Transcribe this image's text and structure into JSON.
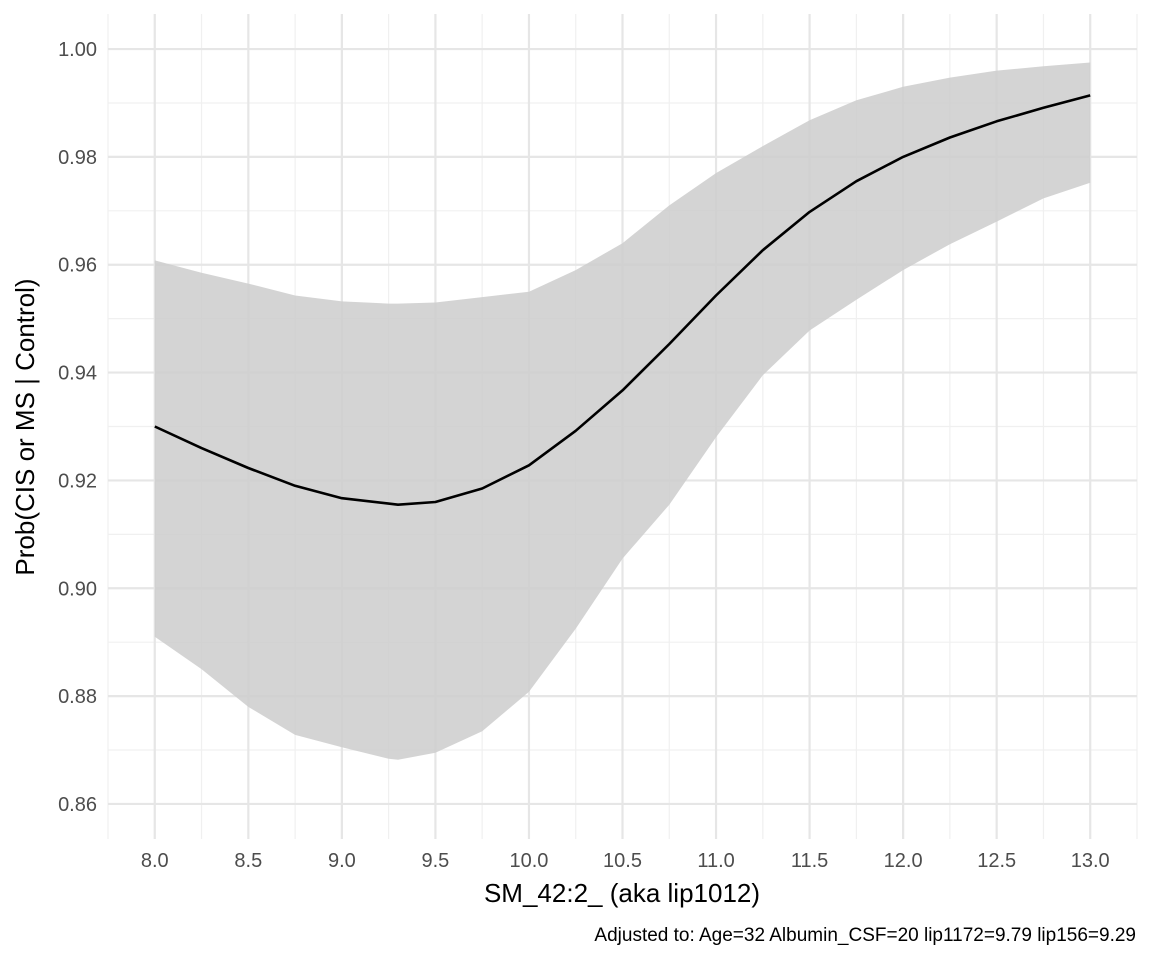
{
  "chart_data": {
    "type": "line",
    "xlabel": "SM_42:2_ (aka lip1012)",
    "ylabel": "Prob(CIS or MS | Control)",
    "caption": "Adjusted to: Age=32 Albumin_CSF=20 lip1172=9.79 lip156=9.29",
    "xlim": [
      7.75,
      13.25
    ],
    "ylim": [
      0.8535,
      1.0065
    ],
    "x_ticks": [
      "8.0",
      "8.5",
      "9.0",
      "9.5",
      "10.0",
      "10.5",
      "11.0",
      "11.5",
      "12.0",
      "12.5",
      "13.0"
    ],
    "y_ticks": [
      "0.86",
      "0.88",
      "0.90",
      "0.92",
      "0.94",
      "0.96",
      "0.98",
      "1.00"
    ],
    "grid": true,
    "legend": "none",
    "colors": {
      "line": "#000000",
      "band": "#cccccc",
      "grid_major": "#e6e6e6",
      "grid_minor": "#f0f0f0"
    },
    "series": [
      {
        "x": [
          8.0,
          8.25,
          8.5,
          8.75,
          9.0,
          9.25,
          9.3,
          9.5,
          9.75,
          10.0,
          10.25,
          10.5,
          10.75,
          11.0,
          11.25,
          11.5,
          11.75,
          12.0,
          12.25,
          12.5,
          12.75,
          13.0
        ],
        "y": [
          0.93,
          0.926,
          0.9223,
          0.919,
          0.9167,
          0.9157,
          0.9155,
          0.916,
          0.9185,
          0.9228,
          0.9292,
          0.9367,
          0.9453,
          0.9543,
          0.9627,
          0.9698,
          0.9755,
          0.98,
          0.9836,
          0.9866,
          0.9891,
          0.9914
        ],
        "lower": [
          0.891,
          0.885,
          0.878,
          0.8728,
          0.8705,
          0.8684,
          0.8682,
          0.8695,
          0.8735,
          0.8808,
          0.8925,
          0.9055,
          0.9155,
          0.928,
          0.9395,
          0.9478,
          0.9535,
          0.959,
          0.9638,
          0.968,
          0.9723,
          0.9752
        ],
        "upper": [
          0.9608,
          0.9585,
          0.9565,
          0.9543,
          0.9532,
          0.9528,
          0.9528,
          0.953,
          0.954,
          0.955,
          0.959,
          0.964,
          0.971,
          0.977,
          0.982,
          0.9868,
          0.9905,
          0.993,
          0.9947,
          0.996,
          0.9968,
          0.9975
        ]
      }
    ]
  }
}
